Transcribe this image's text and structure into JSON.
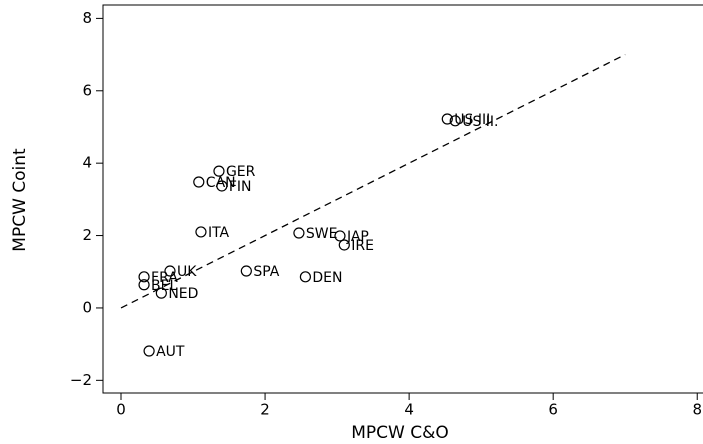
{
  "chart_data": {
    "type": "scatter",
    "x_label": "MPCW C&O",
    "y_label": "MPCW Coint",
    "labels": [
      "US III",
      "US II.",
      "GER",
      "CAN",
      "FIN",
      "ITA",
      "SWE",
      "JAP",
      "IRE",
      "UK",
      "SPA",
      "DEN",
      "FRA",
      "BEL",
      "NED",
      "AUT"
    ],
    "x": [
      4.53,
      4.64,
      1.36,
      1.08,
      1.4,
      1.11,
      2.47,
      3.04,
      3.1,
      0.68,
      1.74,
      2.56,
      0.32,
      0.32,
      0.56,
      0.39
    ],
    "y": [
      5.22,
      5.17,
      3.78,
      3.48,
      3.37,
      2.1,
      2.07,
      1.99,
      1.74,
      1.02,
      1.02,
      0.86,
      0.86,
      0.64,
      0.41,
      -1.19
    ],
    "fit_line": {
      "x": [
        0,
        7
      ],
      "y": [
        0,
        7
      ]
    },
    "color": "#000000",
    "xlim": [
      -0.25,
      8.08
    ],
    "ylim": [
      -2.35,
      8.37
    ],
    "xticks": [
      0,
      2,
      4,
      6,
      8
    ],
    "yticks": [
      {
        "value": -2,
        "label": "−2"
      },
      0,
      2,
      4,
      6,
      8
    ]
  }
}
